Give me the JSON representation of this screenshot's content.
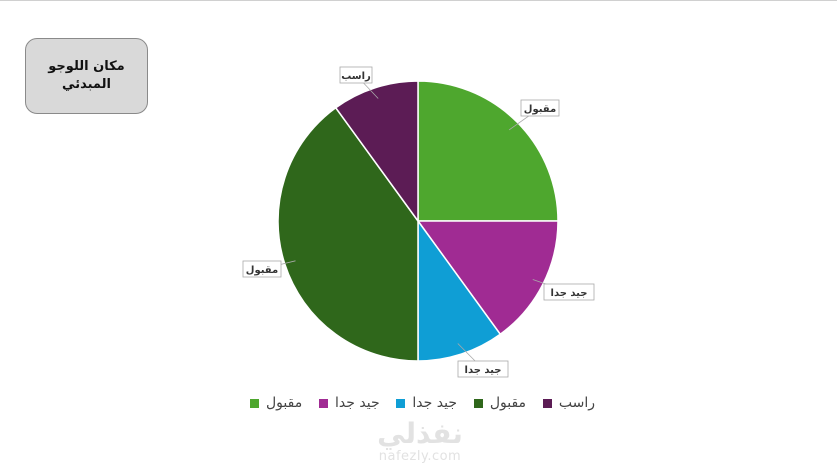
{
  "logo_placeholder": {
    "line1": "مكان اللوجو",
    "line2": "المبدئي"
  },
  "chart_data": {
    "type": "pie",
    "direction": "clockwise from top",
    "slices": [
      {
        "label": "مقبول",
        "value": 25,
        "color": "#4ea72e"
      },
      {
        "label": "جيد جدا",
        "value": 15,
        "color": "#a02b93"
      },
      {
        "label": "جيد جدا",
        "value": 10,
        "color": "#0f9ed5"
      },
      {
        "label": "مقبول",
        "value": 40,
        "color": "#2f671b"
      },
      {
        "label": "راسب",
        "value": 10,
        "color": "#5c1c55"
      }
    ],
    "legend_position": "bottom",
    "data_labels": "category names with leader lines"
  },
  "watermark": {
    "arabic": "نفذلي",
    "latin": "nafezly.com"
  }
}
